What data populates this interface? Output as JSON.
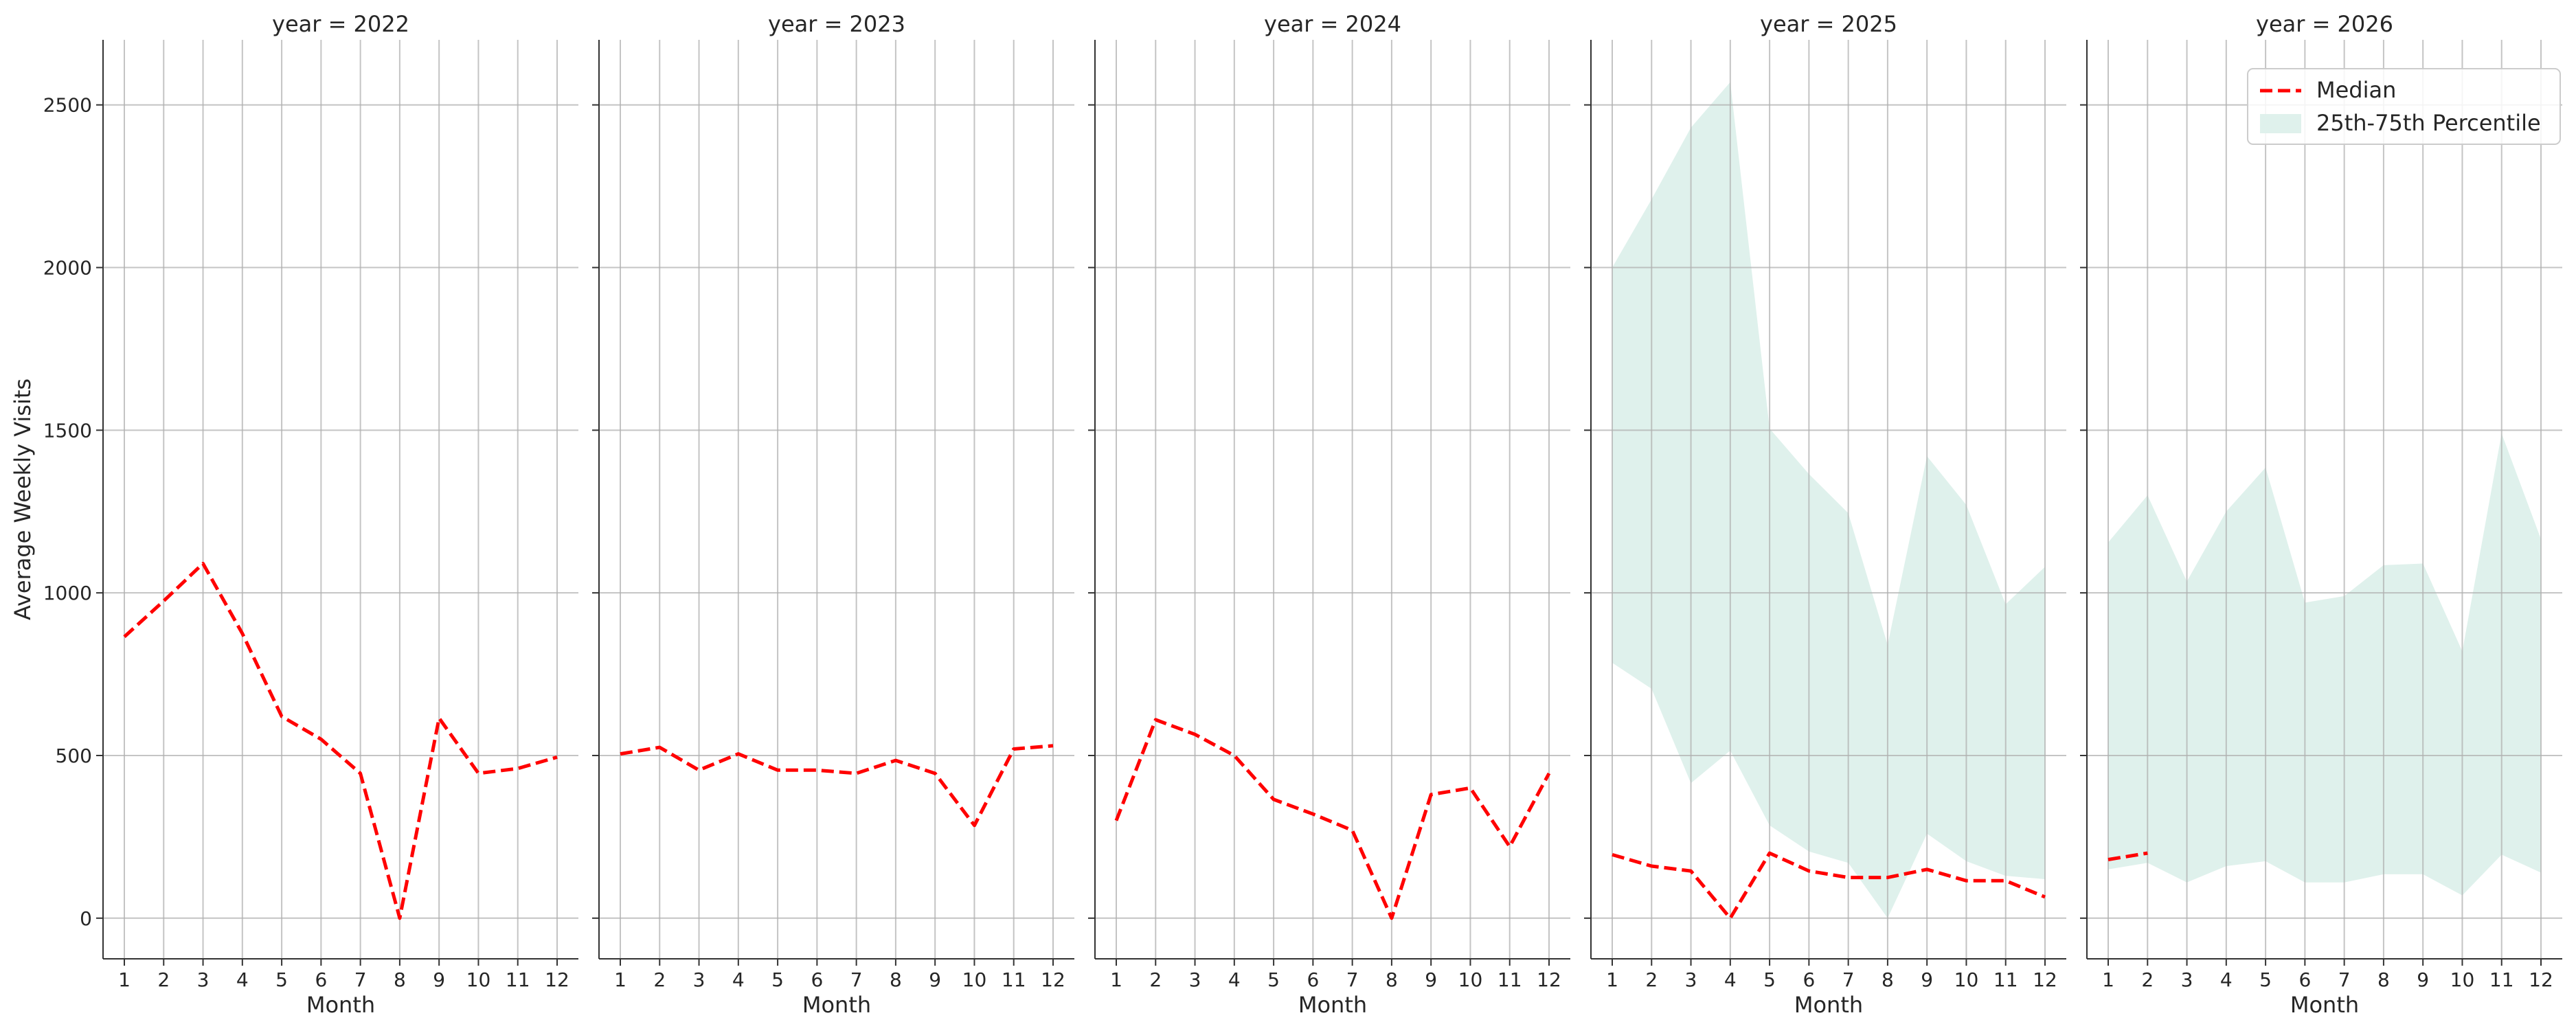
{
  "figure": {
    "ylabel": "Average Weekly Visits",
    "xlabel": "Month",
    "legend": {
      "placement": "top-right",
      "median_label": "Median",
      "band_label": "25th-75th Percentile"
    }
  },
  "colors": {
    "median": "#ff0000",
    "band": "#dff1ec",
    "grid": "#b0b0b0",
    "axis": "#333333"
  },
  "chart_data": {
    "type": "line",
    "title": "",
    "xlabel": "Month",
    "ylabel": "Average Weekly Visits",
    "x": [
      1,
      2,
      3,
      4,
      5,
      6,
      7,
      8,
      9,
      10,
      11,
      12
    ],
    "xticks": [
      "1",
      "2",
      "3",
      "4",
      "5",
      "6",
      "7",
      "8",
      "9",
      "10",
      "11",
      "12"
    ],
    "yticks": [
      0,
      500,
      1000,
      1500,
      2000,
      2500
    ],
    "ylim": [
      -125,
      2700
    ],
    "grid": true,
    "legend": "top-right",
    "panels": [
      {
        "title": "year = 2022",
        "series": [
          {
            "name": "Median",
            "x": [
              1,
              2,
              3,
              4,
              5,
              6,
              7,
              8,
              9,
              10,
              11,
              12
            ],
            "values": [
              865,
              975,
              1090,
              875,
              620,
              550,
              445,
              0,
              615,
              445,
              460,
              495
            ]
          }
        ]
      },
      {
        "title": "year = 2023",
        "series": [
          {
            "name": "Median",
            "x": [
              1,
              2,
              3,
              4,
              5,
              6,
              7,
              8,
              9,
              10,
              11,
              12
            ],
            "values": [
              505,
              525,
              455,
              505,
              455,
              455,
              445,
              485,
              445,
              285,
              520,
              530
            ]
          }
        ]
      },
      {
        "title": "year = 2024",
        "series": [
          {
            "name": "Median",
            "x": [
              1,
              2,
              3,
              4,
              5,
              6,
              7,
              8,
              9,
              10,
              11,
              12
            ],
            "values": [
              300,
              610,
              565,
              500,
              365,
              320,
              270,
              0,
              380,
              400,
              220,
              445
            ]
          }
        ]
      },
      {
        "title": "year = 2025",
        "series": [
          {
            "name": "Median",
            "x": [
              1,
              2,
              3,
              4,
              5,
              6,
              7,
              8,
              9,
              10,
              11,
              12
            ],
            "values": [
              195,
              160,
              145,
              0,
              200,
              145,
              125,
              125,
              150,
              115,
              115,
              65
            ]
          }
        ],
        "band": {
          "name": "25th-75th Percentile",
          "x": [
            1,
            2,
            3,
            4,
            5,
            6,
            7,
            8,
            9,
            10,
            11,
            12
          ],
          "lower": [
            785,
            705,
            415,
            515,
            285,
            205,
            170,
            0,
            260,
            175,
            130,
            120
          ],
          "upper": [
            2000,
            2210,
            2430,
            2570,
            1505,
            1365,
            1245,
            840,
            1420,
            1270,
            965,
            1080
          ]
        }
      },
      {
        "title": "year = 2026",
        "series": [
          {
            "name": "Median",
            "x": [
              1,
              2
            ],
            "values": [
              180,
              200
            ]
          }
        ],
        "band": {
          "name": "25th-75th Percentile",
          "x": [
            1,
            2,
            3,
            4,
            5,
            6,
            7,
            8,
            9,
            10,
            11,
            12
          ],
          "lower": [
            150,
            170,
            110,
            160,
            175,
            110,
            110,
            135,
            135,
            70,
            195,
            140
          ],
          "upper": [
            1155,
            1300,
            1035,
            1250,
            1385,
            970,
            990,
            1085,
            1090,
            820,
            1490,
            1165
          ]
        }
      }
    ]
  }
}
